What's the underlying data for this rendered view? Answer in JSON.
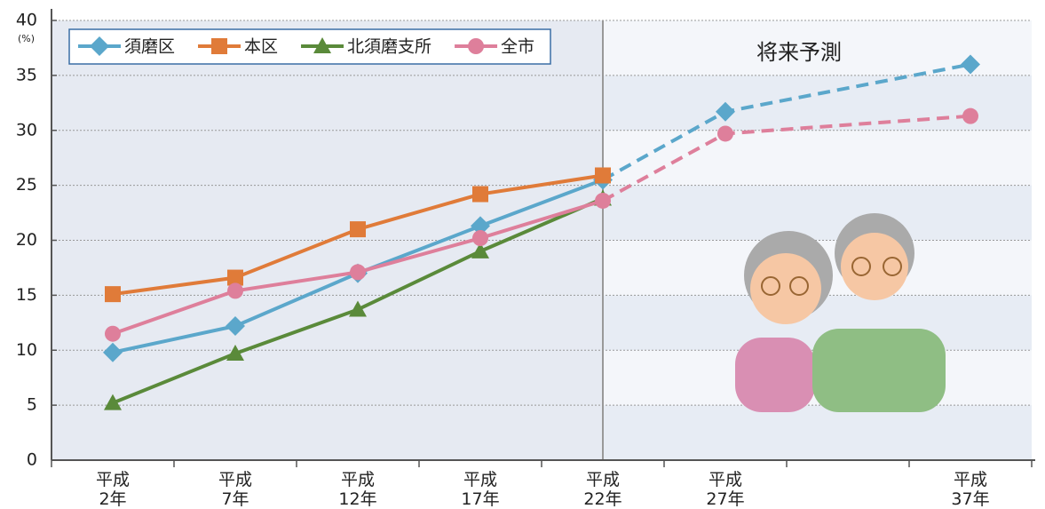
{
  "chart_data": {
    "type": "line",
    "y_unit": "(%)",
    "annotation": "将来予測",
    "x": [
      2,
      7,
      12,
      17,
      22,
      27,
      37
    ],
    "xlim": [
      -0.5,
      39.5
    ],
    "xticks": [
      {
        "value": 2,
        "label": "平成\n2年"
      },
      {
        "value": 7,
        "label": "平成\n7年"
      },
      {
        "value": 12,
        "label": "平成\n12年"
      },
      {
        "value": 17,
        "label": "平成\n17年"
      },
      {
        "value": 22,
        "label": "平成\n22年"
      },
      {
        "value": 27,
        "label": "平成\n27年"
      },
      {
        "value": 37,
        "label": "平成\n37年"
      }
    ],
    "forecast_start_index": 4,
    "ylim": [
      0,
      40
    ],
    "yticks": [
      0,
      5,
      10,
      15,
      20,
      25,
      30,
      35,
      40
    ],
    "grid": true,
    "legend": "top-left",
    "series": [
      {
        "name": "須磨区",
        "color": "#5ba7cb",
        "marker": "diamond",
        "values": [
          9.8,
          12.2,
          17.0,
          21.3,
          25.5,
          31.7,
          36.0
        ]
      },
      {
        "name": "本区",
        "color": "#e07b39",
        "marker": "square",
        "values": [
          15.1,
          16.6,
          21.0,
          24.2,
          25.9,
          null,
          null
        ]
      },
      {
        "name": "北須磨支所",
        "color": "#5a8a3a",
        "marker": "triangle",
        "values": [
          5.2,
          9.7,
          13.7,
          19.0,
          23.8,
          null,
          null
        ]
      },
      {
        "name": "全市",
        "color": "#de7f9b",
        "marker": "circle",
        "values": [
          11.5,
          15.4,
          17.1,
          20.2,
          23.6,
          29.7,
          31.3
        ]
      }
    ]
  }
}
